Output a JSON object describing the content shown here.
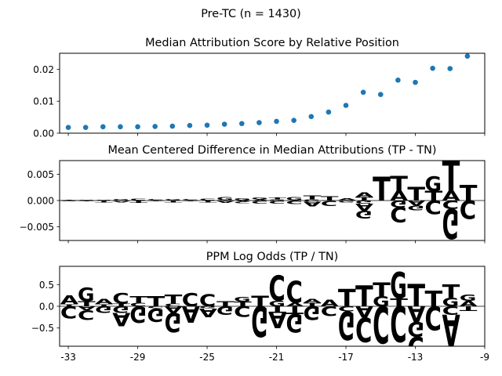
{
  "suptitle": "Pre-TC (n = 1430)",
  "colors": {
    "A": "#008000",
    "C": "#0000ff",
    "G": "#ffa500",
    "T": "#ff0000",
    "dot": "#1f77b4"
  },
  "chart_data": [
    {
      "type": "scatter",
      "title": "Median Attribution Score by Relative Position",
      "xlim": [
        -33.5,
        -9
      ],
      "ylim": [
        0,
        0.025
      ],
      "yticks": [
        "0.00",
        "0.01",
        "0.02"
      ],
      "ytick_values": [
        0,
        0.01,
        0.02
      ],
      "x": [
        -33,
        -32,
        -31,
        -30,
        -29,
        -28,
        -27,
        -26,
        -25,
        -24,
        -23,
        -22,
        -21,
        -20,
        -19,
        -18,
        -17,
        -16,
        -15,
        -14,
        -13,
        -12,
        -11,
        -10
      ],
      "y": [
        0.0018,
        0.0018,
        0.002,
        0.002,
        0.002,
        0.0021,
        0.0022,
        0.0024,
        0.0025,
        0.0028,
        0.003,
        0.0033,
        0.0037,
        0.004,
        0.0052,
        0.0066,
        0.0087,
        0.0128,
        0.0121,
        0.0166,
        0.0159,
        0.0203,
        0.0202,
        0.0241
      ]
    },
    {
      "type": "sequence-logo",
      "title": "Mean Centered Difference in Median Attributions (TP - TN)",
      "xlim": [
        -33.5,
        -9
      ],
      "ylim": [
        -0.0076,
        0.0076
      ],
      "yticks": [
        "0.005",
        "0.000",
        "−0.005"
      ],
      "ytick_values": [
        0.005,
        0,
        -0.005
      ],
      "positions": [
        {
          "x": -33,
          "pos": [
            [
              "A",
              0.0001
            ],
            [
              "T",
              0.0001
            ]
          ],
          "neg": [
            [
              "C",
              0.0001
            ],
            [
              "G",
              0.0001
            ]
          ]
        },
        {
          "x": -32,
          "pos": [
            [
              "A",
              0.0001
            ],
            [
              "G",
              0.0001
            ]
          ],
          "neg": [
            [
              "C",
              0.0001
            ],
            [
              "T",
              0.0001
            ]
          ]
        },
        {
          "x": -31,
          "pos": [
            [
              "A",
              0.0001
            ],
            [
              "G",
              0.0001
            ]
          ],
          "neg": [
            [
              "C",
              0.0001
            ],
            [
              "T",
              0.0003
            ]
          ]
        },
        {
          "x": -30,
          "pos": [
            [
              "C",
              0.0001
            ],
            [
              "G",
              0.0002
            ]
          ],
          "neg": [
            [
              "T",
              0.0001
            ],
            [
              "A",
              0.0003
            ]
          ]
        },
        {
          "x": -29,
          "pos": [
            [
              "G",
              0.0001
            ],
            [
              "C",
              0.0003
            ]
          ],
          "neg": [
            [
              "A",
              0.0001
            ],
            [
              "T",
              0.0004
            ]
          ]
        },
        {
          "x": -28,
          "pos": [
            [
              "A",
              0.0001
            ],
            [
              "C",
              0.0002
            ]
          ],
          "neg": [
            [
              "G",
              0.0001
            ],
            [
              "T",
              0.0001
            ]
          ]
        },
        {
          "x": -27,
          "pos": [
            [
              "C",
              0.0001
            ],
            [
              "G",
              0.0002
            ]
          ],
          "neg": [
            [
              "A",
              0.0001
            ],
            [
              "T",
              0.0003
            ]
          ]
        },
        {
          "x": -26,
          "pos": [
            [
              "G",
              0.0001
            ],
            [
              "C",
              0.0002
            ]
          ],
          "neg": [
            [
              "A",
              0.0001
            ],
            [
              "T",
              0.0001
            ]
          ]
        },
        {
          "x": -25,
          "pos": [
            [
              "A",
              0.0001
            ],
            [
              "C",
              0.0003
            ]
          ],
          "neg": [
            [
              "G",
              0.0001
            ],
            [
              "T",
              0.0003
            ]
          ]
        },
        {
          "x": -24,
          "pos": [
            [
              "T",
              0.0001
            ],
            [
              "G",
              0.0006
            ]
          ],
          "neg": [
            [
              "C",
              0.0001
            ],
            [
              "A",
              0.0004
            ]
          ]
        },
        {
          "x": -23,
          "pos": [
            [
              "T",
              0.0001
            ],
            [
              "G",
              0.0004
            ]
          ],
          "neg": [
            [
              "A",
              0.0002
            ],
            [
              "C",
              0.0003
            ]
          ]
        },
        {
          "x": -22,
          "pos": [
            [
              "A",
              0.0002
            ],
            [
              "G",
              0.0004
            ]
          ],
          "neg": [
            [
              "T",
              0.0001
            ],
            [
              "C",
              0.0005
            ]
          ]
        },
        {
          "x": -21,
          "pos": [
            [
              "G",
              0.0002
            ],
            [
              "T",
              0.0004
            ]
          ],
          "neg": [
            [
              "A",
              0.0001
            ],
            [
              "C",
              0.0005
            ]
          ]
        },
        {
          "x": -20,
          "pos": [
            [
              "T",
              0.0001
            ],
            [
              "G",
              0.0006
            ]
          ],
          "neg": [
            [
              "A",
              0.0001
            ],
            [
              "C",
              0.0006
            ]
          ]
        },
        {
          "x": -19,
          "pos": [
            [
              "G",
              0.0002
            ],
            [
              "T",
              0.0008
            ]
          ],
          "neg": [
            [
              "C",
              0.0002
            ],
            [
              "A",
              0.0009
            ]
          ]
        },
        {
          "x": -18,
          "pos": [
            [
              "A",
              0.0001
            ],
            [
              "T",
              0.0008
            ]
          ],
          "neg": [
            [
              "G",
              0.0001
            ],
            [
              "C",
              0.001
            ]
          ]
        },
        {
          "x": -17,
          "pos": [
            [
              "C",
              0.0001
            ],
            [
              "A",
              0.0004
            ]
          ],
          "neg": [
            [
              "T",
              0.0001
            ],
            [
              "G",
              0.0003
            ]
          ]
        },
        {
          "x": -16,
          "pos": [
            [
              "T",
              0.0007
            ],
            [
              "A",
              0.0009
            ]
          ],
          "neg": [
            [
              "G",
              0.0006
            ],
            [
              "A",
              0.0013
            ],
            [
              "G",
              0.0014
            ]
          ]
        },
        {
          "x": -15,
          "pos": [
            [
              "T",
              0.0045
            ]
          ],
          "neg": []
        },
        {
          "x": -14,
          "pos": [
            [
              "A",
              0.0018
            ],
            [
              "T",
              0.0029
            ]
          ],
          "neg": [
            [
              "G",
              0.0013
            ],
            [
              "C",
              0.0029
            ]
          ]
        },
        {
          "x": -13,
          "pos": [
            [
              "T",
              0.0026
            ]
          ],
          "neg": [
            [
              "A",
              0.001
            ],
            [
              "G",
              0.0009
            ]
          ]
        },
        {
          "x": -12,
          "pos": [
            [
              "T",
              0.0018
            ],
            [
              "G",
              0.0028
            ]
          ],
          "neg": [
            [
              "C",
              0.0026
            ]
          ]
        },
        {
          "x": -11,
          "pos": [
            [
              "A",
              0.0018
            ],
            [
              "T",
              0.006
            ]
          ],
          "neg": [
            [
              "C",
              0.0016
            ],
            [
              "G",
              0.0057
            ]
          ]
        },
        {
          "x": -10,
          "pos": [
            [
              "T",
              0.003
            ]
          ],
          "neg": [
            [
              "C",
              0.0035
            ]
          ]
        }
      ]
    },
    {
      "type": "sequence-logo",
      "title": "PPM Log Odds (TP / TN)",
      "xlim": [
        -33.5,
        -9
      ],
      "ylim": [
        -0.92,
        0.92
      ],
      "yticks": [
        "0.5",
        "0.0",
        "−0.5"
      ],
      "ytick_values": [
        0.5,
        0,
        -0.5
      ],
      "xticks": [
        "-33",
        "-29",
        "-25",
        "-21",
        "-17",
        "-13",
        "-9"
      ],
      "xtick_values": [
        -33,
        -29,
        -25,
        -21,
        -17,
        -13,
        -9
      ],
      "positions": [
        {
          "x": -33,
          "pos": [
            [
              "T",
              0.05
            ],
            [
              "A",
              0.2
            ]
          ],
          "neg": [
            [
              "C",
              0.28
            ]
          ]
        },
        {
          "x": -32,
          "pos": [
            [
              "T",
              0.12
            ],
            [
              "G",
              0.32
            ]
          ],
          "neg": [
            [
              "A",
              0.09
            ],
            [
              "C",
              0.22
            ]
          ]
        },
        {
          "x": -31,
          "pos": [
            [
              "T",
              0.05
            ],
            [
              "A",
              0.12
            ]
          ],
          "neg": [
            [
              "G",
              0.15
            ]
          ]
        },
        {
          "x": -30,
          "pos": [
            [
              "T",
              0.06
            ],
            [
              "C",
              0.25
            ]
          ],
          "neg": [
            [
              "G",
              0.15
            ],
            [
              "A",
              0.3
            ]
          ]
        },
        {
          "x": -29,
          "pos": [
            [
              "C",
              0.08
            ],
            [
              "T",
              0.15
            ]
          ],
          "neg": [
            [
              "G",
              0.38
            ]
          ]
        },
        {
          "x": -28,
          "pos": [
            [
              "T",
              0.23
            ]
          ],
          "neg": [
            [
              "C",
              0.05
            ],
            [
              "G",
              0.3
            ]
          ]
        },
        {
          "x": -27,
          "pos": [
            [
              "C",
              0.06
            ],
            [
              "T",
              0.21
            ]
          ],
          "neg": [
            [
              "A",
              0.15
            ],
            [
              "G",
              0.45
            ]
          ]
        },
        {
          "x": -26,
          "pos": [
            [
              "C",
              0.3
            ]
          ],
          "neg": [
            [
              "A",
              0.37
            ]
          ]
        },
        {
          "x": -25,
          "pos": [
            [
              "C",
              0.28
            ]
          ],
          "neg": [
            [
              "G",
              0.05
            ],
            [
              "A",
              0.2
            ]
          ]
        },
        {
          "x": -24,
          "pos": [
            [
              "T",
              0.12
            ]
          ],
          "neg": [
            [
              "G",
              0.2
            ]
          ]
        },
        {
          "x": -23,
          "pos": [
            [
              "T",
              0.11
            ],
            [
              "G",
              0.11
            ]
          ],
          "neg": [
            [
              "C",
              0.24
            ]
          ]
        },
        {
          "x": -22,
          "pos": [
            [
              "T",
              0.25
            ]
          ],
          "neg": [
            [
              "G",
              0.72
            ]
          ]
        },
        {
          "x": -21,
          "pos": [
            [
              "G",
              0.13
            ],
            [
              "C",
              0.59
            ]
          ],
          "neg": [
            [
              "T",
              0.15
            ],
            [
              "A",
              0.35
            ]
          ]
        },
        {
          "x": -20,
          "pos": [
            [
              "A",
              0.08
            ],
            [
              "C",
              0.5
            ]
          ],
          "neg": [
            [
              "T",
              0.18
            ],
            [
              "G",
              0.42
            ]
          ]
        },
        {
          "x": -19,
          "pos": [
            [
              "T",
              0.08
            ],
            [
              "A",
              0.09
            ]
          ],
          "neg": [
            [
              "G",
              0.32
            ]
          ]
        },
        {
          "x": -18,
          "pos": [
            [
              "A",
              0.15
            ]
          ],
          "neg": [
            [
              "C",
              0.22
            ]
          ]
        },
        {
          "x": -17,
          "pos": [
            [
              "T",
              0.4
            ]
          ],
          "neg": [
            [
              "C",
              0.12
            ],
            [
              "G",
              0.66
            ]
          ]
        },
        {
          "x": -16,
          "pos": [
            [
              "T",
              0.48
            ]
          ],
          "neg": [
            [
              "A",
              0.26
            ],
            [
              "C",
              0.56
            ]
          ]
        },
        {
          "x": -15,
          "pos": [
            [
              "G",
              0.23
            ],
            [
              "T",
              0.33
            ]
          ],
          "neg": [
            [
              "C",
              0.85
            ]
          ]
        },
        {
          "x": -14,
          "pos": [
            [
              "T",
              0.18
            ],
            [
              "G",
              0.61
            ]
          ],
          "neg": [
            [
              "C",
              0.82
            ]
          ]
        },
        {
          "x": -13,
          "pos": [
            [
              "T",
              0.52
            ]
          ],
          "neg": [
            [
              "A",
              0.36
            ],
            [
              "G",
              0.34
            ],
            [
              "C",
              0.5
            ]
          ]
        },
        {
          "x": -12,
          "pos": [
            [
              "T",
              0.36
            ]
          ],
          "neg": [
            [
              "C",
              0.55
            ]
          ]
        },
        {
          "x": -11,
          "pos": [
            [
              "G",
              0.2
            ],
            [
              "T",
              0.3
            ]
          ],
          "neg": [
            [
              "C",
              0.2
            ],
            [
              "A",
              0.72
            ]
          ]
        },
        {
          "x": -10,
          "pos": [
            [
              "A",
              0.13
            ],
            [
              "G",
              0.14
            ]
          ],
          "neg": [
            [
              "T",
              0.11
            ]
          ]
        }
      ]
    }
  ]
}
